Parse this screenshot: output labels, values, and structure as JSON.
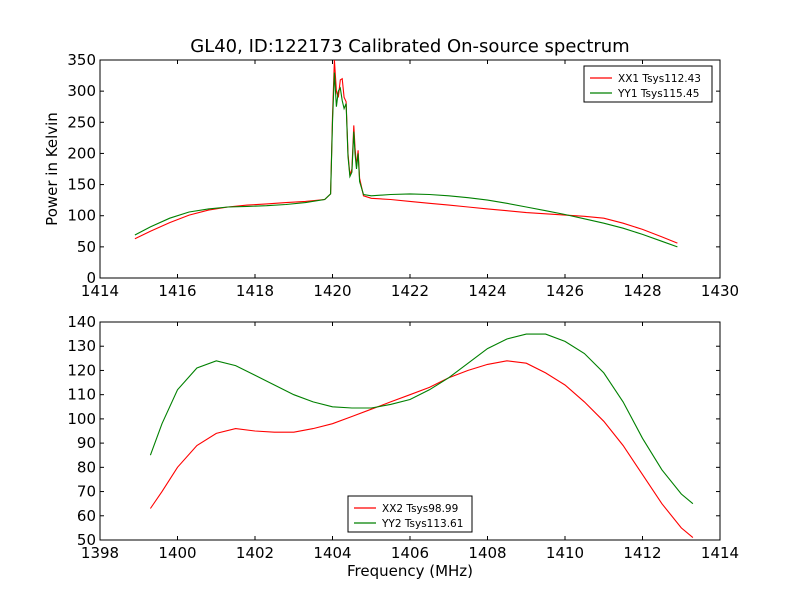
{
  "title": "GL40, ID:122173 Calibrated On-source spectrum",
  "colors": {
    "xx": "#ff0000",
    "yy": "#008000"
  },
  "chart_data": [
    {
      "type": "line",
      "xlabel": "",
      "ylabel": "Power in Kelvin",
      "xlim": [
        1414,
        1430
      ],
      "ylim": [
        0,
        350
      ],
      "xticks": [
        1414,
        1416,
        1418,
        1420,
        1422,
        1424,
        1426,
        1428,
        1430
      ],
      "yticks": [
        0,
        50,
        100,
        150,
        200,
        250,
        300,
        350
      ],
      "legend_position": "top-right",
      "series": [
        {
          "name": "XX1 Tsys112.43",
          "color": "#ff0000",
          "x": [
            1414.9,
            1415.3,
            1415.8,
            1416.3,
            1416.8,
            1417.3,
            1417.8,
            1418.3,
            1418.8,
            1419.3,
            1419.8,
            1419.95,
            1420.0,
            1420.05,
            1420.1,
            1420.15,
            1420.2,
            1420.25,
            1420.3,
            1420.35,
            1420.4,
            1420.45,
            1420.5,
            1420.55,
            1420.58,
            1420.62,
            1420.66,
            1420.7,
            1420.8,
            1421.0,
            1421.5,
            1422.0,
            1422.5,
            1423.0,
            1423.5,
            1424.0,
            1424.5,
            1425.0,
            1425.5,
            1426.0,
            1426.5,
            1427.0,
            1427.5,
            1428.0,
            1428.5,
            1428.9
          ],
          "y": [
            63,
            75,
            89,
            101,
            109,
            114,
            117,
            119,
            121,
            123,
            126,
            135,
            260,
            350,
            300,
            290,
            318,
            320,
            290,
            283,
            200,
            165,
            175,
            245,
            210,
            180,
            205,
            160,
            132,
            128,
            126,
            123,
            120,
            117,
            114,
            111,
            108,
            105,
            103,
            101,
            99,
            96,
            88,
            78,
            66,
            56
          ]
        },
        {
          "name": "YY1 Tsys115.45",
          "color": "#008000",
          "x": [
            1414.9,
            1415.3,
            1415.8,
            1416.3,
            1416.8,
            1417.3,
            1417.8,
            1418.3,
            1418.8,
            1419.3,
            1419.8,
            1419.95,
            1420.0,
            1420.05,
            1420.1,
            1420.15,
            1420.2,
            1420.25,
            1420.3,
            1420.35,
            1420.4,
            1420.45,
            1420.5,
            1420.55,
            1420.58,
            1420.62,
            1420.66,
            1420.7,
            1420.8,
            1421.0,
            1421.5,
            1422.0,
            1422.5,
            1423.0,
            1423.5,
            1424.0,
            1424.5,
            1425.0,
            1425.5,
            1426.0,
            1426.5,
            1427.0,
            1427.5,
            1428.0,
            1428.5,
            1428.9
          ],
          "y": [
            69,
            82,
            96,
            106,
            111,
            114,
            115,
            116,
            118,
            121,
            126,
            135,
            250,
            330,
            275,
            300,
            305,
            285,
            272,
            280,
            195,
            163,
            170,
            235,
            200,
            175,
            200,
            155,
            134,
            132,
            134,
            135,
            134,
            132,
            129,
            125,
            120,
            114,
            108,
            102,
            95,
            88,
            80,
            70,
            59,
            50
          ]
        }
      ]
    },
    {
      "type": "line",
      "xlabel": "Frequency (MHz)",
      "ylabel": "",
      "xlim": [
        1398,
        1414
      ],
      "ylim": [
        50,
        140
      ],
      "xticks": [
        1398,
        1400,
        1402,
        1404,
        1406,
        1408,
        1410,
        1412,
        1414
      ],
      "yticks": [
        50,
        60,
        70,
        80,
        90,
        100,
        110,
        120,
        130,
        140
      ],
      "legend_position": "lower-center",
      "series": [
        {
          "name": "XX2 Tsys98.99",
          "color": "#ff0000",
          "x": [
            1399.3,
            1399.6,
            1400.0,
            1400.5,
            1401.0,
            1401.5,
            1402.0,
            1402.5,
            1403.0,
            1403.5,
            1404.0,
            1404.5,
            1405.0,
            1405.5,
            1406.0,
            1406.5,
            1407.0,
            1407.5,
            1408.0,
            1408.5,
            1409.0,
            1409.5,
            1410.0,
            1410.5,
            1411.0,
            1411.5,
            1412.0,
            1412.5,
            1413.0,
            1413.3
          ],
          "y": [
            63,
            70,
            80,
            89,
            94,
            96,
            95,
            94.5,
            94.5,
            96,
            98,
            101,
            104,
            107,
            110,
            113,
            117,
            120,
            122.5,
            124,
            123,
            119,
            114,
            107,
            99,
            89,
            77,
            65,
            55,
            51
          ]
        },
        {
          "name": "YY2 Tsys113.61",
          "color": "#008000",
          "x": [
            1399.3,
            1399.6,
            1400.0,
            1400.5,
            1401.0,
            1401.5,
            1402.0,
            1402.5,
            1403.0,
            1403.5,
            1404.0,
            1404.5,
            1405.0,
            1405.5,
            1406.0,
            1406.5,
            1407.0,
            1407.5,
            1408.0,
            1408.5,
            1409.0,
            1409.5,
            1410.0,
            1410.5,
            1411.0,
            1411.5,
            1412.0,
            1412.5,
            1413.0,
            1413.3
          ],
          "y": [
            85,
            98,
            112,
            121,
            124,
            122,
            118,
            114,
            110,
            107,
            105,
            104.5,
            104.5,
            106,
            108,
            112,
            117,
            123,
            129,
            133,
            135,
            135,
            132,
            127,
            119,
            107,
            92,
            79,
            69,
            65
          ]
        }
      ]
    }
  ]
}
